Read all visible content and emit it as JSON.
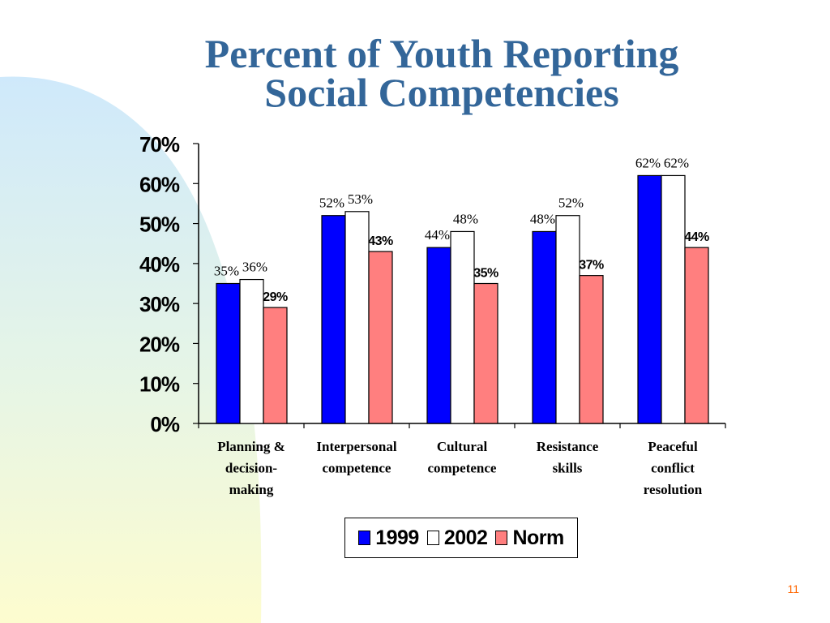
{
  "slide": {
    "title_lines": [
      "Percent of Youth Reporting",
      "Social Competencies"
    ],
    "page_number": "11"
  },
  "colors": {
    "title": "#336699",
    "series_1999": "#0000ff",
    "series_2002": "#ffffff",
    "series_norm": "#ff7f7f",
    "page_number": "#ff6600"
  },
  "chart_data": {
    "type": "bar",
    "categories": [
      [
        "Planning &",
        "decision-",
        "making"
      ],
      [
        "Interpersonal",
        "competence"
      ],
      [
        "Cultural",
        "competence"
      ],
      [
        "Resistance",
        "skills"
      ],
      [
        "Peaceful",
        "conflict",
        "resolution"
      ]
    ],
    "series": [
      {
        "name": "1999",
        "values": [
          35,
          52,
          44,
          48,
          62
        ],
        "labels": [
          "35%",
          "52%",
          "44%",
          "48%",
          "62%"
        ]
      },
      {
        "name": "2002",
        "values": [
          36,
          53,
          48,
          52,
          62
        ],
        "labels": [
          "36%",
          "53%",
          "48%",
          "52%",
          "62%"
        ]
      },
      {
        "name": "Norm",
        "values": [
          29,
          43,
          35,
          37,
          44
        ],
        "labels": [
          "29%",
          "43%",
          "35%",
          "37%",
          "44%"
        ]
      }
    ],
    "yticks": [
      "0%",
      "10%",
      "20%",
      "30%",
      "40%",
      "50%",
      "60%",
      "70%"
    ],
    "ylim": [
      0,
      70
    ],
    "grid": false,
    "legend_position": "bottom"
  }
}
